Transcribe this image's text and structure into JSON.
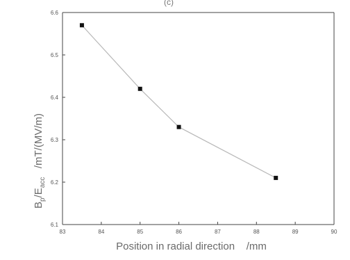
{
  "chart_data": {
    "type": "line",
    "top_label": "(c)",
    "xlabel": "Position in radial direction    /mm",
    "ylabel": {
      "symbol": "B",
      "symbol_sub": "p",
      "divisor": "/E",
      "divisor_sub": "acc",
      "units": "   /mT/(MV/m)"
    },
    "xlim": [
      83,
      90
    ],
    "ylim": [
      6.1,
      6.6
    ],
    "x_ticks": [
      "83",
      "84",
      "85",
      "86",
      "87",
      "88",
      "89",
      "90"
    ],
    "y_ticks": [
      "6.1",
      "6.2",
      "6.3",
      "6.4",
      "6.5",
      "6.6"
    ],
    "x": [
      83.5,
      85,
      86,
      88.5
    ],
    "series": [
      {
        "values": [
          6.57,
          6.42,
          6.33,
          6.21
        ]
      }
    ],
    "grid": false,
    "colors": {
      "line": "#b8b8b8",
      "marker": "#111111",
      "axis": "#444444"
    }
  }
}
